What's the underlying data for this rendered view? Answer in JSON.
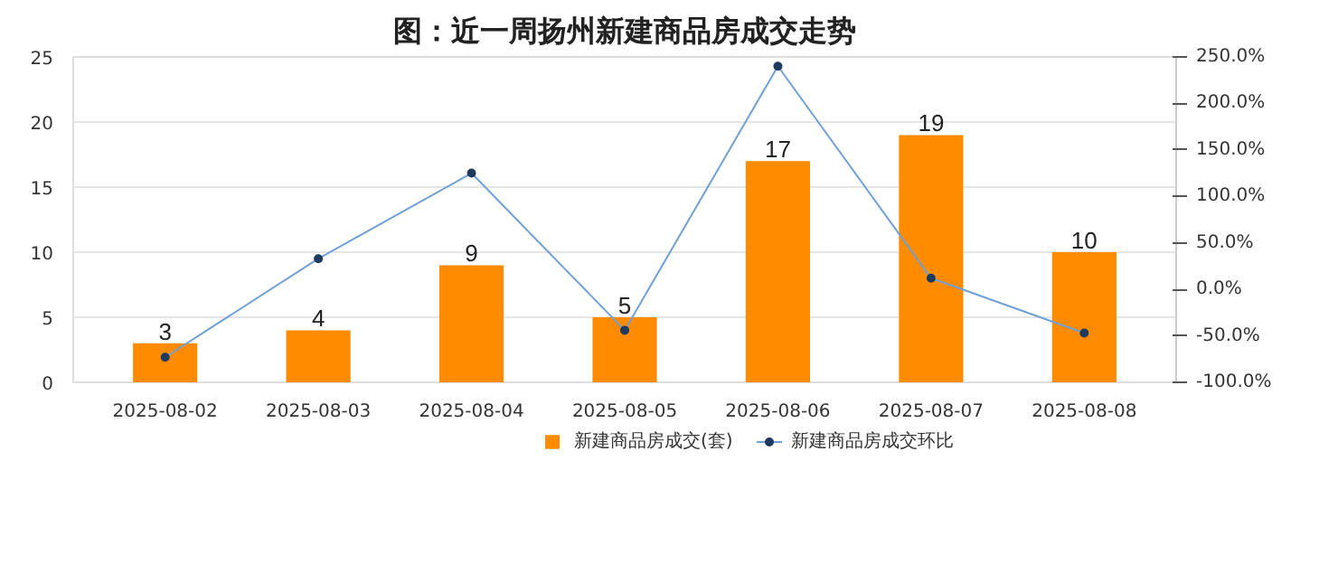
{
  "chart_data": {
    "type": "bar",
    "title": "图：近一周扬州新建商品房成交走势",
    "categories": [
      "2025-08-02",
      "2025-08-03",
      "2025-08-04",
      "2025-08-05",
      "2025-08-06",
      "2025-08-07",
      "2025-08-08"
    ],
    "series": [
      {
        "name": "新建商品房成交(套)",
        "color": "#ff8c00",
        "values": [
          3,
          4,
          9,
          5,
          17,
          19,
          10
        ],
        "value_labels": [
          "3",
          "4",
          "9",
          "5",
          "17",
          "19",
          "10"
        ]
      },
      {
        "name": "新建商品房成交环比",
        "type": "line",
        "axis": "y2",
        "color": "#6fa0d8",
        "marker": "circle",
        "values": [
          -73,
          33,
          125,
          -44,
          240,
          12,
          -47
        ]
      }
    ],
    "ylim": [
      0,
      25
    ],
    "yticks": [
      0,
      5,
      10,
      15,
      20,
      25
    ],
    "y2lim": [
      -100,
      250
    ],
    "y2ticks": [
      {
        "value": -100,
        "label": "-100.0%"
      },
      {
        "value": -50,
        "label": "-50.0%"
      },
      {
        "value": 0,
        "label": "0.0%"
      },
      {
        "value": 50,
        "label": "50.0%"
      },
      {
        "value": 100,
        "label": "100.0%"
      },
      {
        "value": 150,
        "label": "150.0%"
      },
      {
        "value": 200,
        "label": "200.0%"
      },
      {
        "value": 250,
        "label": "250.0%"
      }
    ],
    "grid": "y",
    "legend": "bottom"
  }
}
